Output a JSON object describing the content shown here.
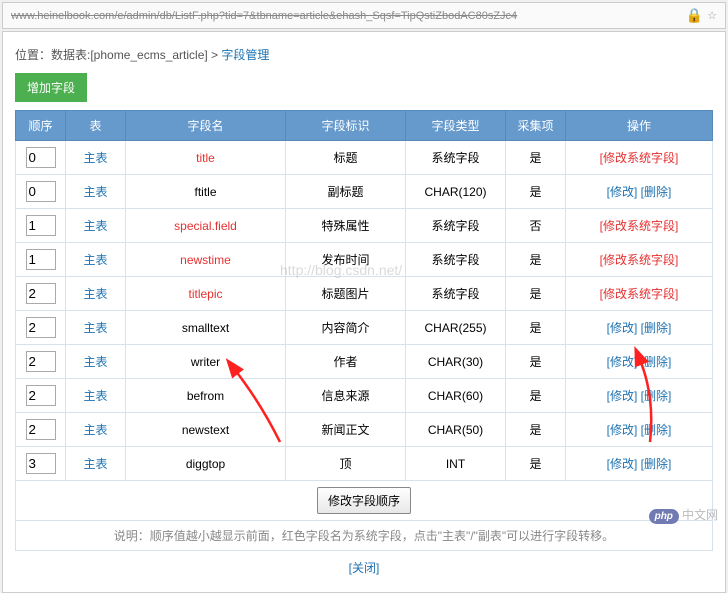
{
  "url": "www.heinelbook.com/e/admin/db/ListF.php?tid=7&tbname=article&ehash_Sqsf=TipQstiZbodAC80sZJc4",
  "breadcrumb": {
    "prefix": "位置：数据表:[",
    "table": "phome_ecms_article",
    "suffix": "] > ",
    "current": "字段管理"
  },
  "addButton": "增加字段",
  "headers": [
    "顺序",
    "表",
    "字段名",
    "字段标识",
    "字段类型",
    "采集项",
    "操作"
  ],
  "rows": [
    {
      "order": "0",
      "table": "主表",
      "name": "title",
      "nameRed": true,
      "label": "标题",
      "type": "系统字段",
      "collect": "是",
      "sysField": true
    },
    {
      "order": "0",
      "table": "主表",
      "name": "ftitle",
      "nameRed": false,
      "label": "副标题",
      "type": "CHAR(120)",
      "collect": "是",
      "sysField": false
    },
    {
      "order": "1",
      "table": "主表",
      "name": "special.field",
      "nameRed": true,
      "label": "特殊属性",
      "type": "系统字段",
      "collect": "否",
      "sysField": true
    },
    {
      "order": "1",
      "table": "主表",
      "name": "newstime",
      "nameRed": true,
      "label": "发布时间",
      "type": "系统字段",
      "collect": "是",
      "sysField": true
    },
    {
      "order": "2",
      "table": "主表",
      "name": "titlepic",
      "nameRed": true,
      "label": "标题图片",
      "type": "系统字段",
      "collect": "是",
      "sysField": true
    },
    {
      "order": "2",
      "table": "主表",
      "name": "smalltext",
      "nameRed": false,
      "label": "内容简介",
      "type": "CHAR(255)",
      "collect": "是",
      "sysField": false
    },
    {
      "order": "2",
      "table": "主表",
      "name": "writer",
      "nameRed": false,
      "label": "作者",
      "type": "CHAR(30)",
      "collect": "是",
      "sysField": false
    },
    {
      "order": "2",
      "table": "主表",
      "name": "befrom",
      "nameRed": false,
      "label": "信息来源",
      "type": "CHAR(60)",
      "collect": "是",
      "sysField": false
    },
    {
      "order": "2",
      "table": "主表",
      "name": "newstext",
      "nameRed": false,
      "label": "新闻正文",
      "type": "CHAR(50)",
      "collect": "是",
      "sysField": false
    },
    {
      "order": "3",
      "table": "主表",
      "name": "diggtop",
      "nameRed": false,
      "label": "顶",
      "type": "INT",
      "collect": "是",
      "sysField": false
    }
  ],
  "actions": {
    "sysEdit": "[修改系统字段]",
    "edit": "[修改]",
    "delete": "[删除]"
  },
  "submitBtn": "修改字段顺序",
  "note": "说明：顺序值越小越显示前面，红色字段名为系统字段，点击\"主表\"/\"副表\"可以进行字段转移。",
  "closeLink": "[关闭]",
  "watermark": "http://blog.csdn.net/",
  "bottomLogo": {
    "php": "php",
    "cn": "中文网"
  }
}
